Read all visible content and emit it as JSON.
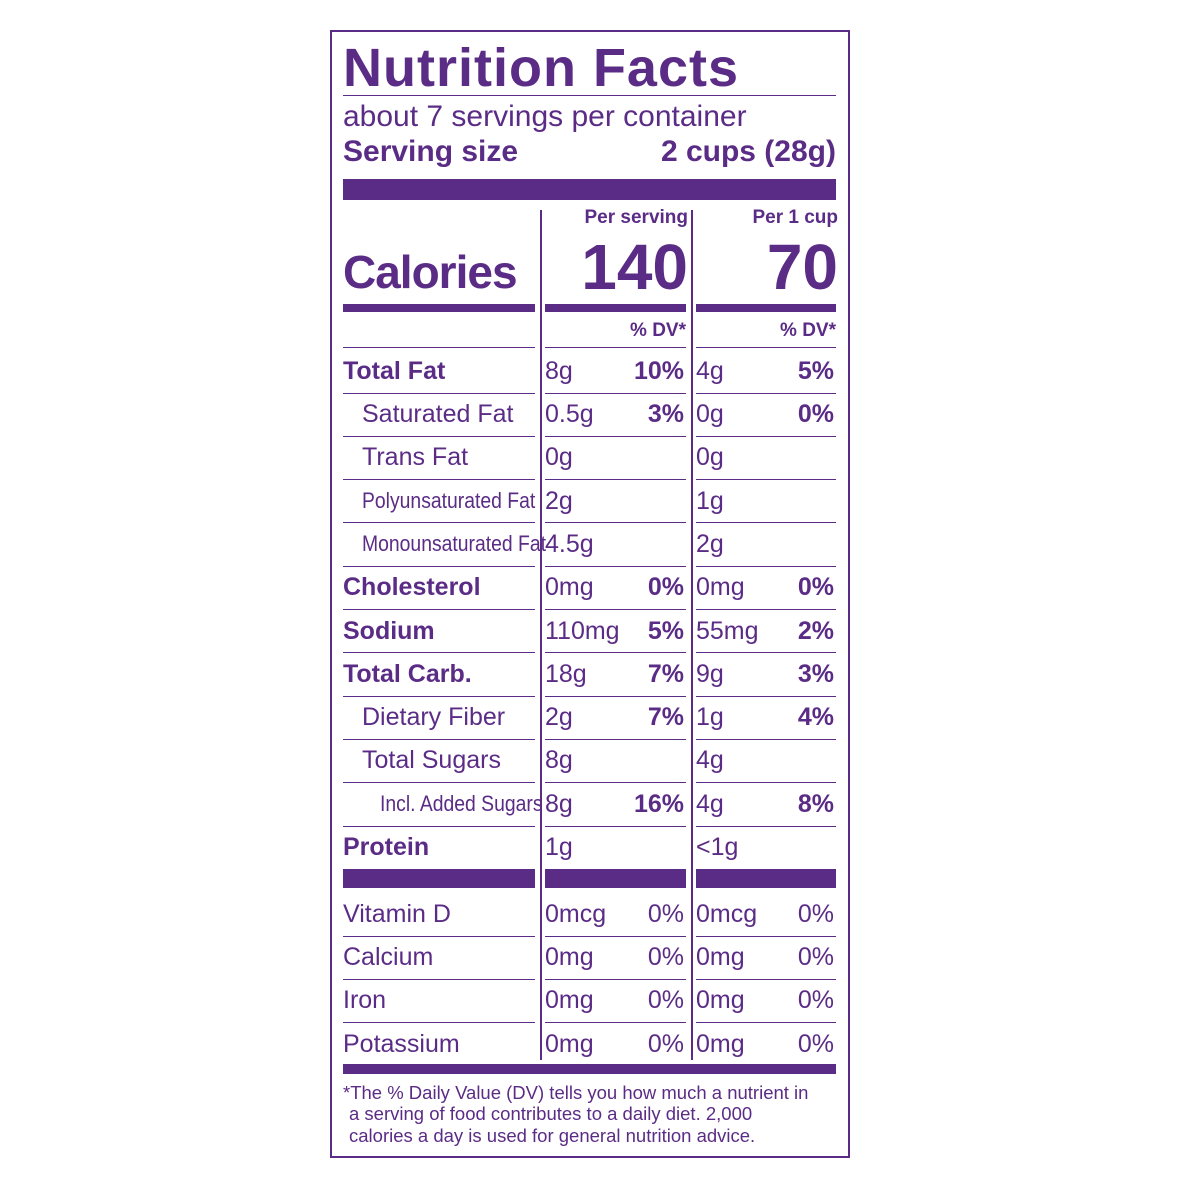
{
  "title": "Nutrition Facts",
  "servings": "about 7 servings per container",
  "serving_size": {
    "label": "Serving size",
    "value": "2 cups (28g)"
  },
  "calories": {
    "label": "Calories",
    "columns": [
      {
        "header": "Per serving",
        "value": 140
      },
      {
        "header": "Per 1 cup",
        "value": 70
      }
    ]
  },
  "dv_headers": [
    "% DV*",
    "% DV*"
  ],
  "nutrients": [
    {
      "name": "Total Fat",
      "bold": true,
      "level": 0,
      "columns": [
        [
          "8g",
          "10%"
        ],
        [
          "4g",
          "5%"
        ]
      ]
    },
    {
      "name": "Saturated Fat",
      "bold": false,
      "level": 1,
      "columns": [
        [
          "0.5g",
          "3%"
        ],
        [
          "0g",
          "0%"
        ]
      ]
    },
    {
      "name": "Trans Fat",
      "bold": false,
      "level": 1,
      "columns": [
        [
          "0g",
          null
        ],
        [
          "0g",
          null
        ]
      ]
    },
    {
      "name": "Polyunsaturated Fat",
      "bold": false,
      "level": 1,
      "columns": [
        [
          "2g",
          null
        ],
        [
          "1g",
          null
        ]
      ]
    },
    {
      "name": "Monounsaturated Fat",
      "bold": false,
      "level": 1,
      "columns": [
        [
          "4.5g",
          null
        ],
        [
          "2g",
          null
        ]
      ]
    },
    {
      "name": "Cholesterol",
      "bold": true,
      "level": 0,
      "columns": [
        [
          "0mg",
          "0%"
        ],
        [
          "0mg",
          "0%"
        ]
      ]
    },
    {
      "name": "Sodium",
      "bold": true,
      "level": 0,
      "columns": [
        [
          "110mg",
          "5%"
        ],
        [
          "55mg",
          "2%"
        ]
      ]
    },
    {
      "name": "Total Carb.",
      "bold": true,
      "level": 0,
      "columns": [
        [
          "18g",
          "7%"
        ],
        [
          "9g",
          "3%"
        ]
      ]
    },
    {
      "name": "Dietary Fiber",
      "bold": false,
      "level": 1,
      "columns": [
        [
          "2g",
          "7%"
        ],
        [
          "1g",
          "4%"
        ]
      ]
    },
    {
      "name": "Total Sugars",
      "bold": false,
      "level": 1,
      "columns": [
        [
          "8g",
          null
        ],
        [
          "4g",
          null
        ]
      ]
    },
    {
      "name": "Incl. Added Sugars",
      "bold": false,
      "level": 2,
      "columns": [
        [
          "8g",
          "16%"
        ],
        [
          "4g",
          "8%"
        ]
      ]
    },
    {
      "name": "Protein",
      "bold": true,
      "level": 0,
      "columns": [
        [
          "1g",
          null
        ],
        [
          "<1g",
          null
        ]
      ]
    }
  ],
  "vitamins": [
    {
      "name": "Vitamin D",
      "columns": [
        [
          "0mcg",
          "0%"
        ],
        [
          "0mcg",
          "0%"
        ]
      ]
    },
    {
      "name": "Calcium",
      "columns": [
        [
          "0mg",
          "0%"
        ],
        [
          "0mg",
          "0%"
        ]
      ]
    },
    {
      "name": "Iron",
      "columns": [
        [
          "0mg",
          "0%"
        ],
        [
          "0mg",
          "0%"
        ]
      ]
    },
    {
      "name": "Potassium",
      "columns": [
        [
          "0mg",
          "0%"
        ],
        [
          "0mg",
          "0%"
        ]
      ]
    }
  ],
  "footnote": [
    "*The % Daily Value (DV) tells you how much a nutrient in",
    "a serving of food contributes to a daily diet. 2,000",
    "calories a day is used for general nutrition advice."
  ]
}
